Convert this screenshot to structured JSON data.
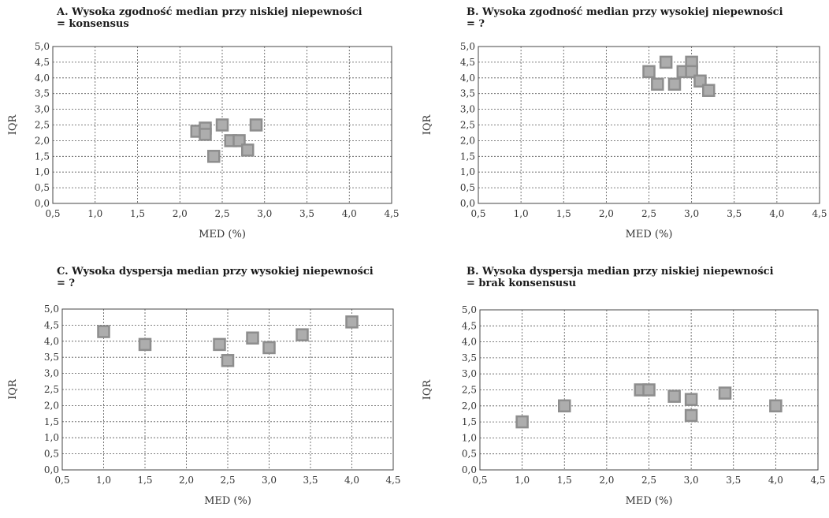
{
  "chart_data": [
    {
      "type": "scatter",
      "title_line1": "A. Wysoka zgodność median przy niskiej niepewności",
      "title_line2": "= konsensus",
      "xlabel": "MED (%)",
      "ylabel": "IQR",
      "xlim": [
        0.5,
        4.5
      ],
      "ylim": [
        0.0,
        5.0
      ],
      "x_ticks": [
        "0,5",
        "1,0",
        "1,5",
        "2,0",
        "2,5",
        "3,0",
        "3,5",
        "4,0",
        "4,5"
      ],
      "y_ticks": [
        "0,0",
        "0,5",
        "1,0",
        "1,5",
        "2,0",
        "2,5",
        "3,0",
        "3,5",
        "4,0",
        "4,5",
        "5,0"
      ],
      "grid": true,
      "points": [
        {
          "x": 2.2,
          "y": 2.3
        },
        {
          "x": 2.3,
          "y": 2.4
        },
        {
          "x": 2.3,
          "y": 2.2
        },
        {
          "x": 2.4,
          "y": 1.5
        },
        {
          "x": 2.5,
          "y": 2.5
        },
        {
          "x": 2.6,
          "y": 2.0
        },
        {
          "x": 2.7,
          "y": 2.0
        },
        {
          "x": 2.8,
          "y": 1.7
        },
        {
          "x": 2.9,
          "y": 2.5
        }
      ]
    },
    {
      "type": "scatter",
      "title_line1": "B. Wysoka zgodność median przy wysokiej niepewności",
      "title_line2": "= ?",
      "xlabel": "MED (%)",
      "ylabel": "IQR",
      "xlim": [
        0.5,
        4.5
      ],
      "ylim": [
        0.0,
        5.0
      ],
      "x_ticks": [
        "0,5",
        "1,0",
        "1,5",
        "2,0",
        "2,5",
        "3,0",
        "3,5",
        "4,0",
        "4,5"
      ],
      "y_ticks": [
        "0,0",
        "0,5",
        "1,0",
        "1,5",
        "2,0",
        "2,5",
        "3,0",
        "3,5",
        "4,0",
        "4,5",
        "5,0"
      ],
      "grid": true,
      "points": [
        {
          "x": 2.5,
          "y": 4.2
        },
        {
          "x": 2.6,
          "y": 3.8
        },
        {
          "x": 2.7,
          "y": 4.5
        },
        {
          "x": 2.8,
          "y": 3.8
        },
        {
          "x": 2.9,
          "y": 4.2
        },
        {
          "x": 3.0,
          "y": 4.5
        },
        {
          "x": 3.0,
          "y": 4.2
        },
        {
          "x": 3.1,
          "y": 3.9
        },
        {
          "x": 3.2,
          "y": 3.6
        }
      ]
    },
    {
      "type": "scatter",
      "title_line1": "C. Wysoka dyspersja median przy wysokiej niepewności",
      "title_line2": "= ?",
      "xlabel": "MED (%)",
      "ylabel": "IQR",
      "xlim": [
        0.5,
        4.5
      ],
      "ylim": [
        0.0,
        5.0
      ],
      "x_ticks": [
        "0,5",
        "1,0",
        "1,5",
        "2,0",
        "2,5",
        "3,0",
        "3,5",
        "4,0",
        "4,5"
      ],
      "y_ticks": [
        "0,0",
        "0,5",
        "1,0",
        "1,5",
        "2,0",
        "2,5",
        "3,0",
        "3,5",
        "4,0",
        "4,5",
        "5,0"
      ],
      "grid": true,
      "points": [
        {
          "x": 1.0,
          "y": 4.3
        },
        {
          "x": 1.5,
          "y": 3.9
        },
        {
          "x": 2.4,
          "y": 3.9
        },
        {
          "x": 2.5,
          "y": 3.4
        },
        {
          "x": 2.8,
          "y": 4.1
        },
        {
          "x": 3.0,
          "y": 3.8
        },
        {
          "x": 3.4,
          "y": 4.2
        },
        {
          "x": 4.0,
          "y": 4.6
        }
      ]
    },
    {
      "type": "scatter",
      "title_line1": "B. Wysoka dyspersja median przy niskiej niepewności",
      "title_line2": "= brak konsensusu",
      "xlabel": "MED (%)",
      "ylabel": "IQR",
      "xlim": [
        0.5,
        4.5
      ],
      "ylim": [
        0.0,
        5.0
      ],
      "x_ticks": [
        "0,5",
        "1,0",
        "1,5",
        "2,0",
        "2,5",
        "3,0",
        "3,5",
        "4,0",
        "4,5"
      ],
      "y_ticks": [
        "0,0",
        "0,5",
        "1,0",
        "1,5",
        "2,0",
        "2,5",
        "3,0",
        "3,5",
        "4,0",
        "4,5",
        "5,0"
      ],
      "grid": true,
      "points": [
        {
          "x": 1.0,
          "y": 1.5
        },
        {
          "x": 1.5,
          "y": 2.0
        },
        {
          "x": 2.4,
          "y": 2.5
        },
        {
          "x": 2.5,
          "y": 2.5
        },
        {
          "x": 2.8,
          "y": 2.3
        },
        {
          "x": 3.0,
          "y": 2.2
        },
        {
          "x": 3.0,
          "y": 1.7
        },
        {
          "x": 3.4,
          "y": 2.4
        },
        {
          "x": 4.0,
          "y": 2.0
        }
      ]
    }
  ],
  "colors": {
    "marker_fill": "#adadad",
    "marker_stroke": "#8d8d8d",
    "grid": "#555555"
  }
}
